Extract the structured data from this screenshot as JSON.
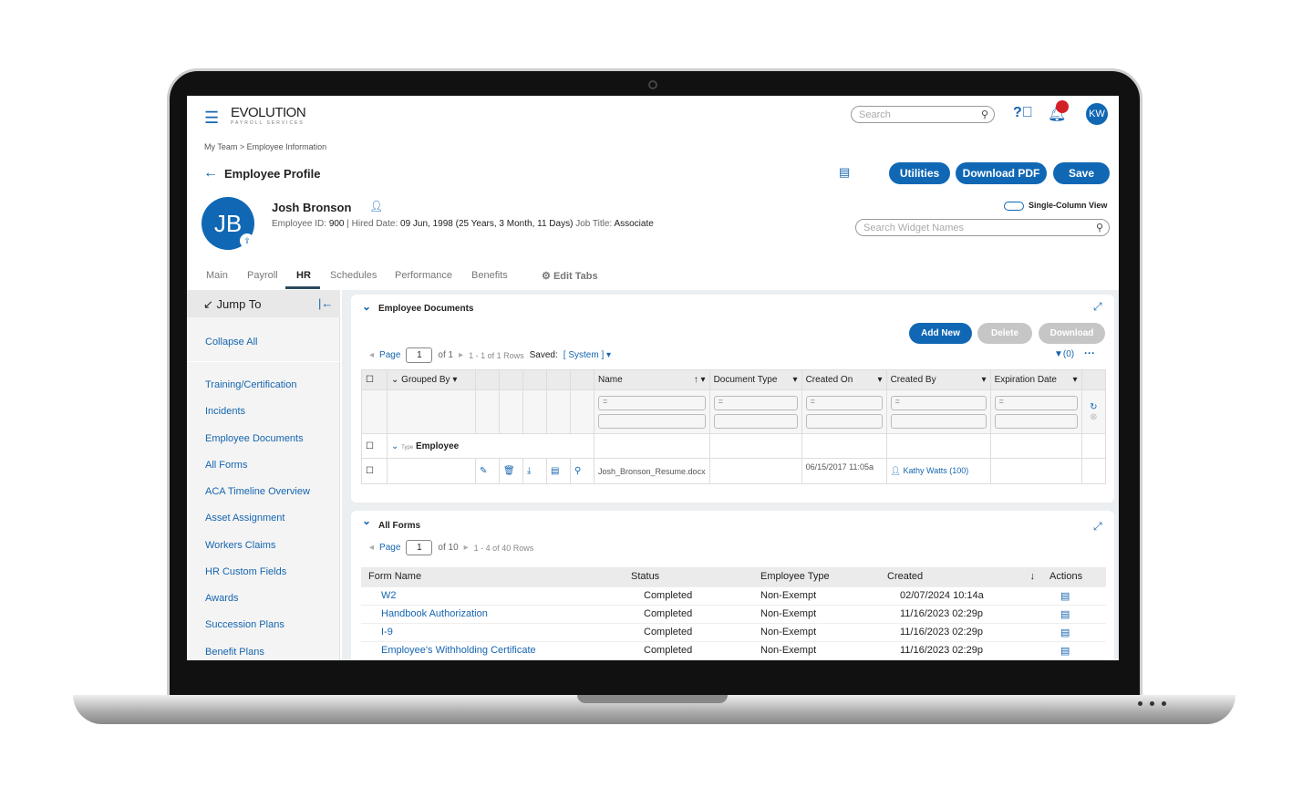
{
  "header": {
    "logo": "EVOLUTION",
    "logo_sub": "PAYROLL SERVICES",
    "search_placeholder": "Search",
    "avatar": "KW"
  },
  "breadcrumb": "My Team > Employee Information",
  "page_title": "Employee Profile",
  "actions": {
    "utilities": "Utilities",
    "download_pdf": "Download PDF",
    "save": "Save",
    "single_column": "Single-Column View",
    "widget_search_placeholder": "Search Widget Names"
  },
  "employee": {
    "initials": "JB",
    "name": "Josh Bronson",
    "id_label": "Employee ID:",
    "id": "900",
    "hired_label": "Hired Date:",
    "hired": "09 Jun, 1998 (25 Years, 3 Month, 11 Days)",
    "job_label": "Job Title:",
    "job": "Associate"
  },
  "tabs": [
    "Main",
    "Payroll",
    "HR",
    "Schedules",
    "Performance",
    "Benefits"
  ],
  "active_tab": "HR",
  "edit_tabs": "Edit Tabs",
  "sidebar": {
    "title": "Jump To",
    "collapse": "Collapse All",
    "items": [
      "Training/Certification",
      "Incidents",
      "Employee Documents",
      "All Forms",
      "ACA Timeline Overview",
      "Asset Assignment",
      "Workers Claims",
      "HR Custom Fields",
      "Awards",
      "Succession Plans",
      "Benefit Plans"
    ]
  },
  "documents": {
    "title": "Employee Documents",
    "add_new": "Add New",
    "delete": "Delete",
    "download": "Download",
    "page_label": "Page",
    "page": "1",
    "of": "of 1",
    "rows": "1 - 1 of 1 Rows",
    "saved_label": "Saved:",
    "saved": "[ System ]",
    "filter": "(0)",
    "columns": [
      "Grouped By",
      "Name",
      "Document Type",
      "Created On",
      "Created By",
      "Expiration Date"
    ],
    "filter_op": "=",
    "group_type": "Type",
    "group_value": "Employee",
    "row": {
      "name": "Josh_Bronson_Resume.docx",
      "created_on": "06/15/2017 11:05a",
      "created_by": "Kathy Watts",
      "created_by_id": "(100)"
    }
  },
  "forms": {
    "title": "All Forms",
    "page_label": "Page",
    "page": "1",
    "of": "of 10",
    "rows": "1 - 4 of 40 Rows",
    "columns": [
      "Form Name",
      "Status",
      "Employee Type",
      "Created",
      "Actions"
    ],
    "items": [
      {
        "name": "W2",
        "status": "Completed",
        "type": "Non-Exempt",
        "created": "02/07/2024 10:14a"
      },
      {
        "name": "Handbook Authorization",
        "status": "Completed",
        "type": "Non-Exempt",
        "created": "11/16/2023 02:29p"
      },
      {
        "name": "I-9",
        "status": "Completed",
        "type": "Non-Exempt",
        "created": "11/16/2023 02:29p"
      },
      {
        "name": "Employee's Withholding Certificate",
        "status": "Completed",
        "type": "Non-Exempt",
        "created": "11/16/2023 02:29p"
      }
    ]
  },
  "colors": {
    "primary": "#1068b5",
    "notification": "#d32027"
  }
}
